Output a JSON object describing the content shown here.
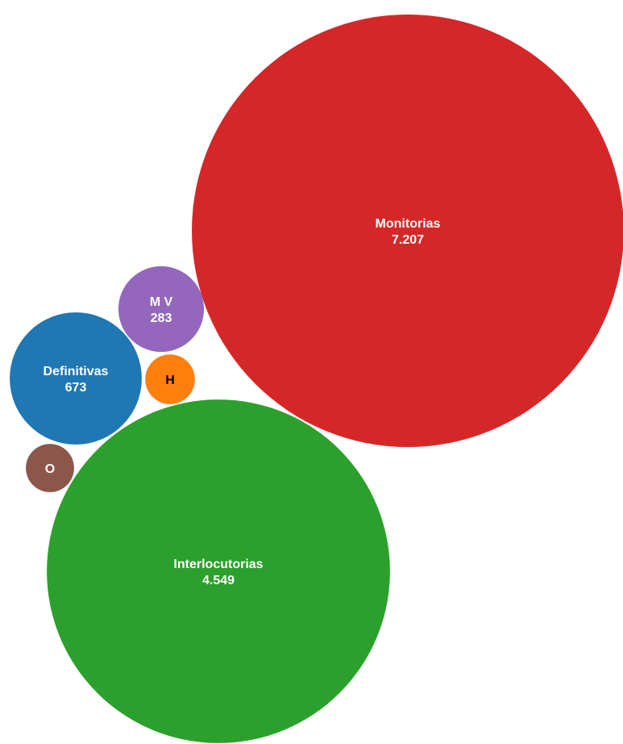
{
  "chart_data": {
    "type": "bubble",
    "series": [
      {
        "name": "Monitorias",
        "value": 7207,
        "value_label": "7.207",
        "color": "#d62728",
        "text_color": "#ffffff"
      },
      {
        "name": "Interlocutorias",
        "value": 4549,
        "value_label": "4.549",
        "color": "#2ca02c",
        "text_color": "#ffffff"
      },
      {
        "name": "Definitivas",
        "value": 673,
        "value_label": "673",
        "color": "#1f77b4",
        "text_color": "#ffffff"
      },
      {
        "name": "M V",
        "value": 283,
        "value_label": "283",
        "color": "#9467bd",
        "text_color": "#ffffff"
      },
      {
        "name": "H",
        "value": 95,
        "value_label": "",
        "color": "#ff7f0e",
        "text_color": "#000000"
      },
      {
        "name": "O",
        "value": 90,
        "value_label": "",
        "color": "#8c564b",
        "text_color": "#ffffff"
      }
    ]
  }
}
